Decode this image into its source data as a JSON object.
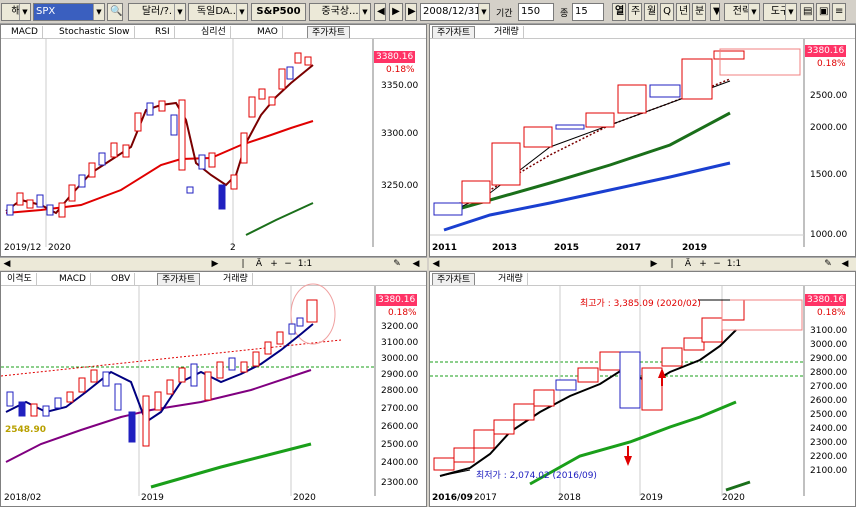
{
  "toolbar": {
    "market": "해",
    "symbol": "SPX",
    "unit": "달러/?.",
    "index": "독일DA...",
    "sp500": "S&P500",
    "china": "중국상...",
    "date": "2008/12/31",
    "period_label": "기간",
    "period_value": "150",
    "count_label": "종",
    "count_value": "15",
    "timeframes": [
      "열",
      "주",
      "월",
      "Q",
      "년",
      "분"
    ],
    "strategy": "전략",
    "tools": "도구"
  },
  "panels": {
    "tl": {
      "tabs": [
        "MACD",
        "Stochastic Slow",
        "RSI",
        "심리선",
        "MAO",
        "주가차트"
      ],
      "price": "3380.16",
      "pct": "0.18%",
      "yticks": [
        "3350.00",
        "3300.00",
        "3250.00"
      ],
      "xticks": [
        "2019/12",
        "2020",
        "2"
      ]
    },
    "tr": {
      "tabs": [
        "주가차트",
        "거래량"
      ],
      "price": "3380.16",
      "pct": "0.18%",
      "yticks": [
        "2500.00",
        "2000.00",
        "1500.00",
        "1000.00"
      ],
      "xticks": [
        "2011",
        "2013",
        "2015",
        "2017",
        "2019"
      ]
    },
    "bl": {
      "tabs": [
        "이격도",
        "MACD",
        "OBV",
        "주가차트",
        "거래량"
      ],
      "price": "3380.16",
      "pct": "0.18%",
      "yticks": [
        "3200.00",
        "3100.00",
        "3000.00",
        "2900.00",
        "2800.00",
        "2700.00",
        "2600.00",
        "2500.00",
        "2400.00",
        "2300.00"
      ],
      "level": "2548.90",
      "xticks": [
        "2018/02",
        "2019",
        "2020"
      ]
    },
    "br": {
      "tabs": [
        "주가차트",
        "거래량"
      ],
      "price": "3380.16",
      "pct": "0.18%",
      "high": "최고가 : 3,385.09 (2020/02)",
      "low": "최저가 : 2,074.02 (2016/09)",
      "yticks": [
        "3100.00",
        "3000.00",
        "2900.00",
        "2800.00",
        "2700.00",
        "2600.00",
        "2500.00",
        "2400.00",
        "2300.00",
        "2200.00",
        "2100.00"
      ],
      "xticks": [
        "2016/09",
        "2017",
        "2018",
        "2019",
        "2020"
      ]
    }
  },
  "scroll": {
    "ratio": "1:1"
  }
}
